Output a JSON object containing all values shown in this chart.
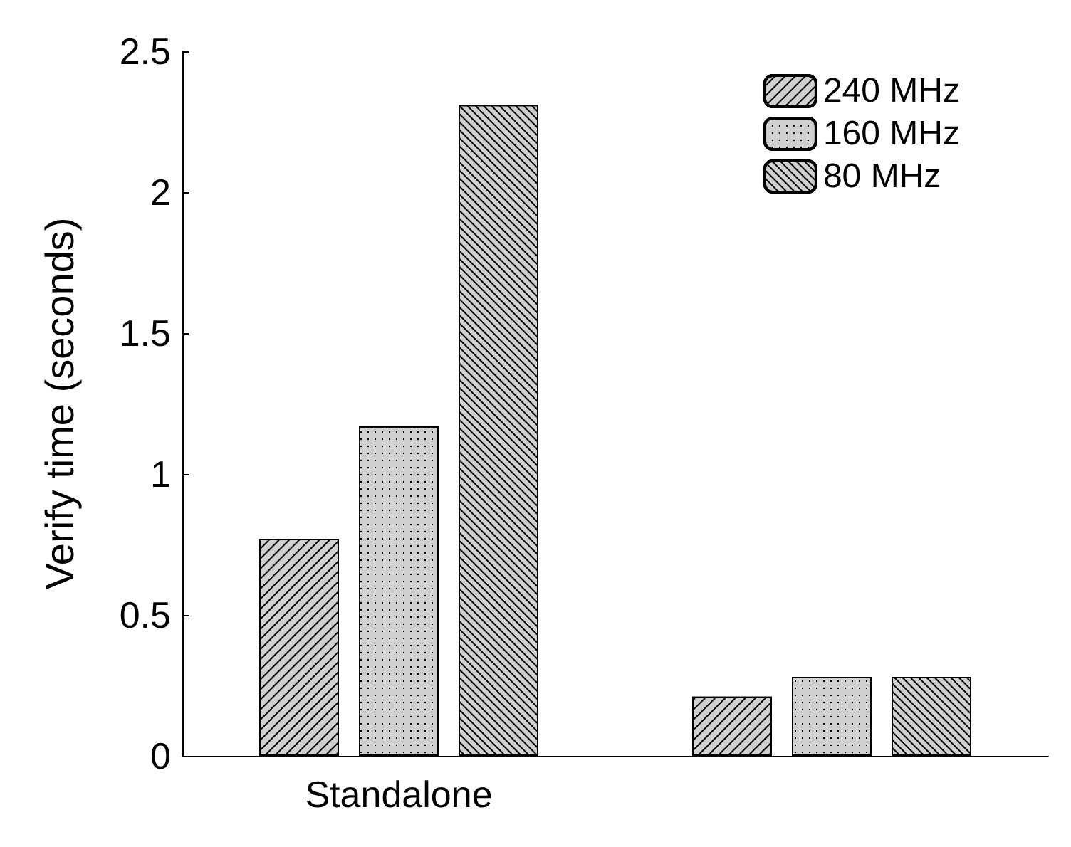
{
  "chart_data": {
    "type": "bar",
    "ylabel": "Verify time (seconds)",
    "categories": [
      "Standalone",
      null
    ],
    "series": [
      {
        "name": "240 MHz",
        "color": "#d0d0d0",
        "values": [
          0.77,
          0.21
        ]
      },
      {
        "name": "160 MHz",
        "color": "#d0d0d0",
        "values": [
          1.17,
          0.28
        ]
      },
      {
        "name": "80 MHz",
        "color": "#d0d0d0",
        "values": [
          2.31,
          0.28
        ]
      }
    ],
    "ylim": [
      0,
      2.5
    ],
    "yticks": [
      0,
      0.5,
      1,
      1.5,
      2,
      2.5
    ],
    "grid": false,
    "legend": "top right"
  }
}
